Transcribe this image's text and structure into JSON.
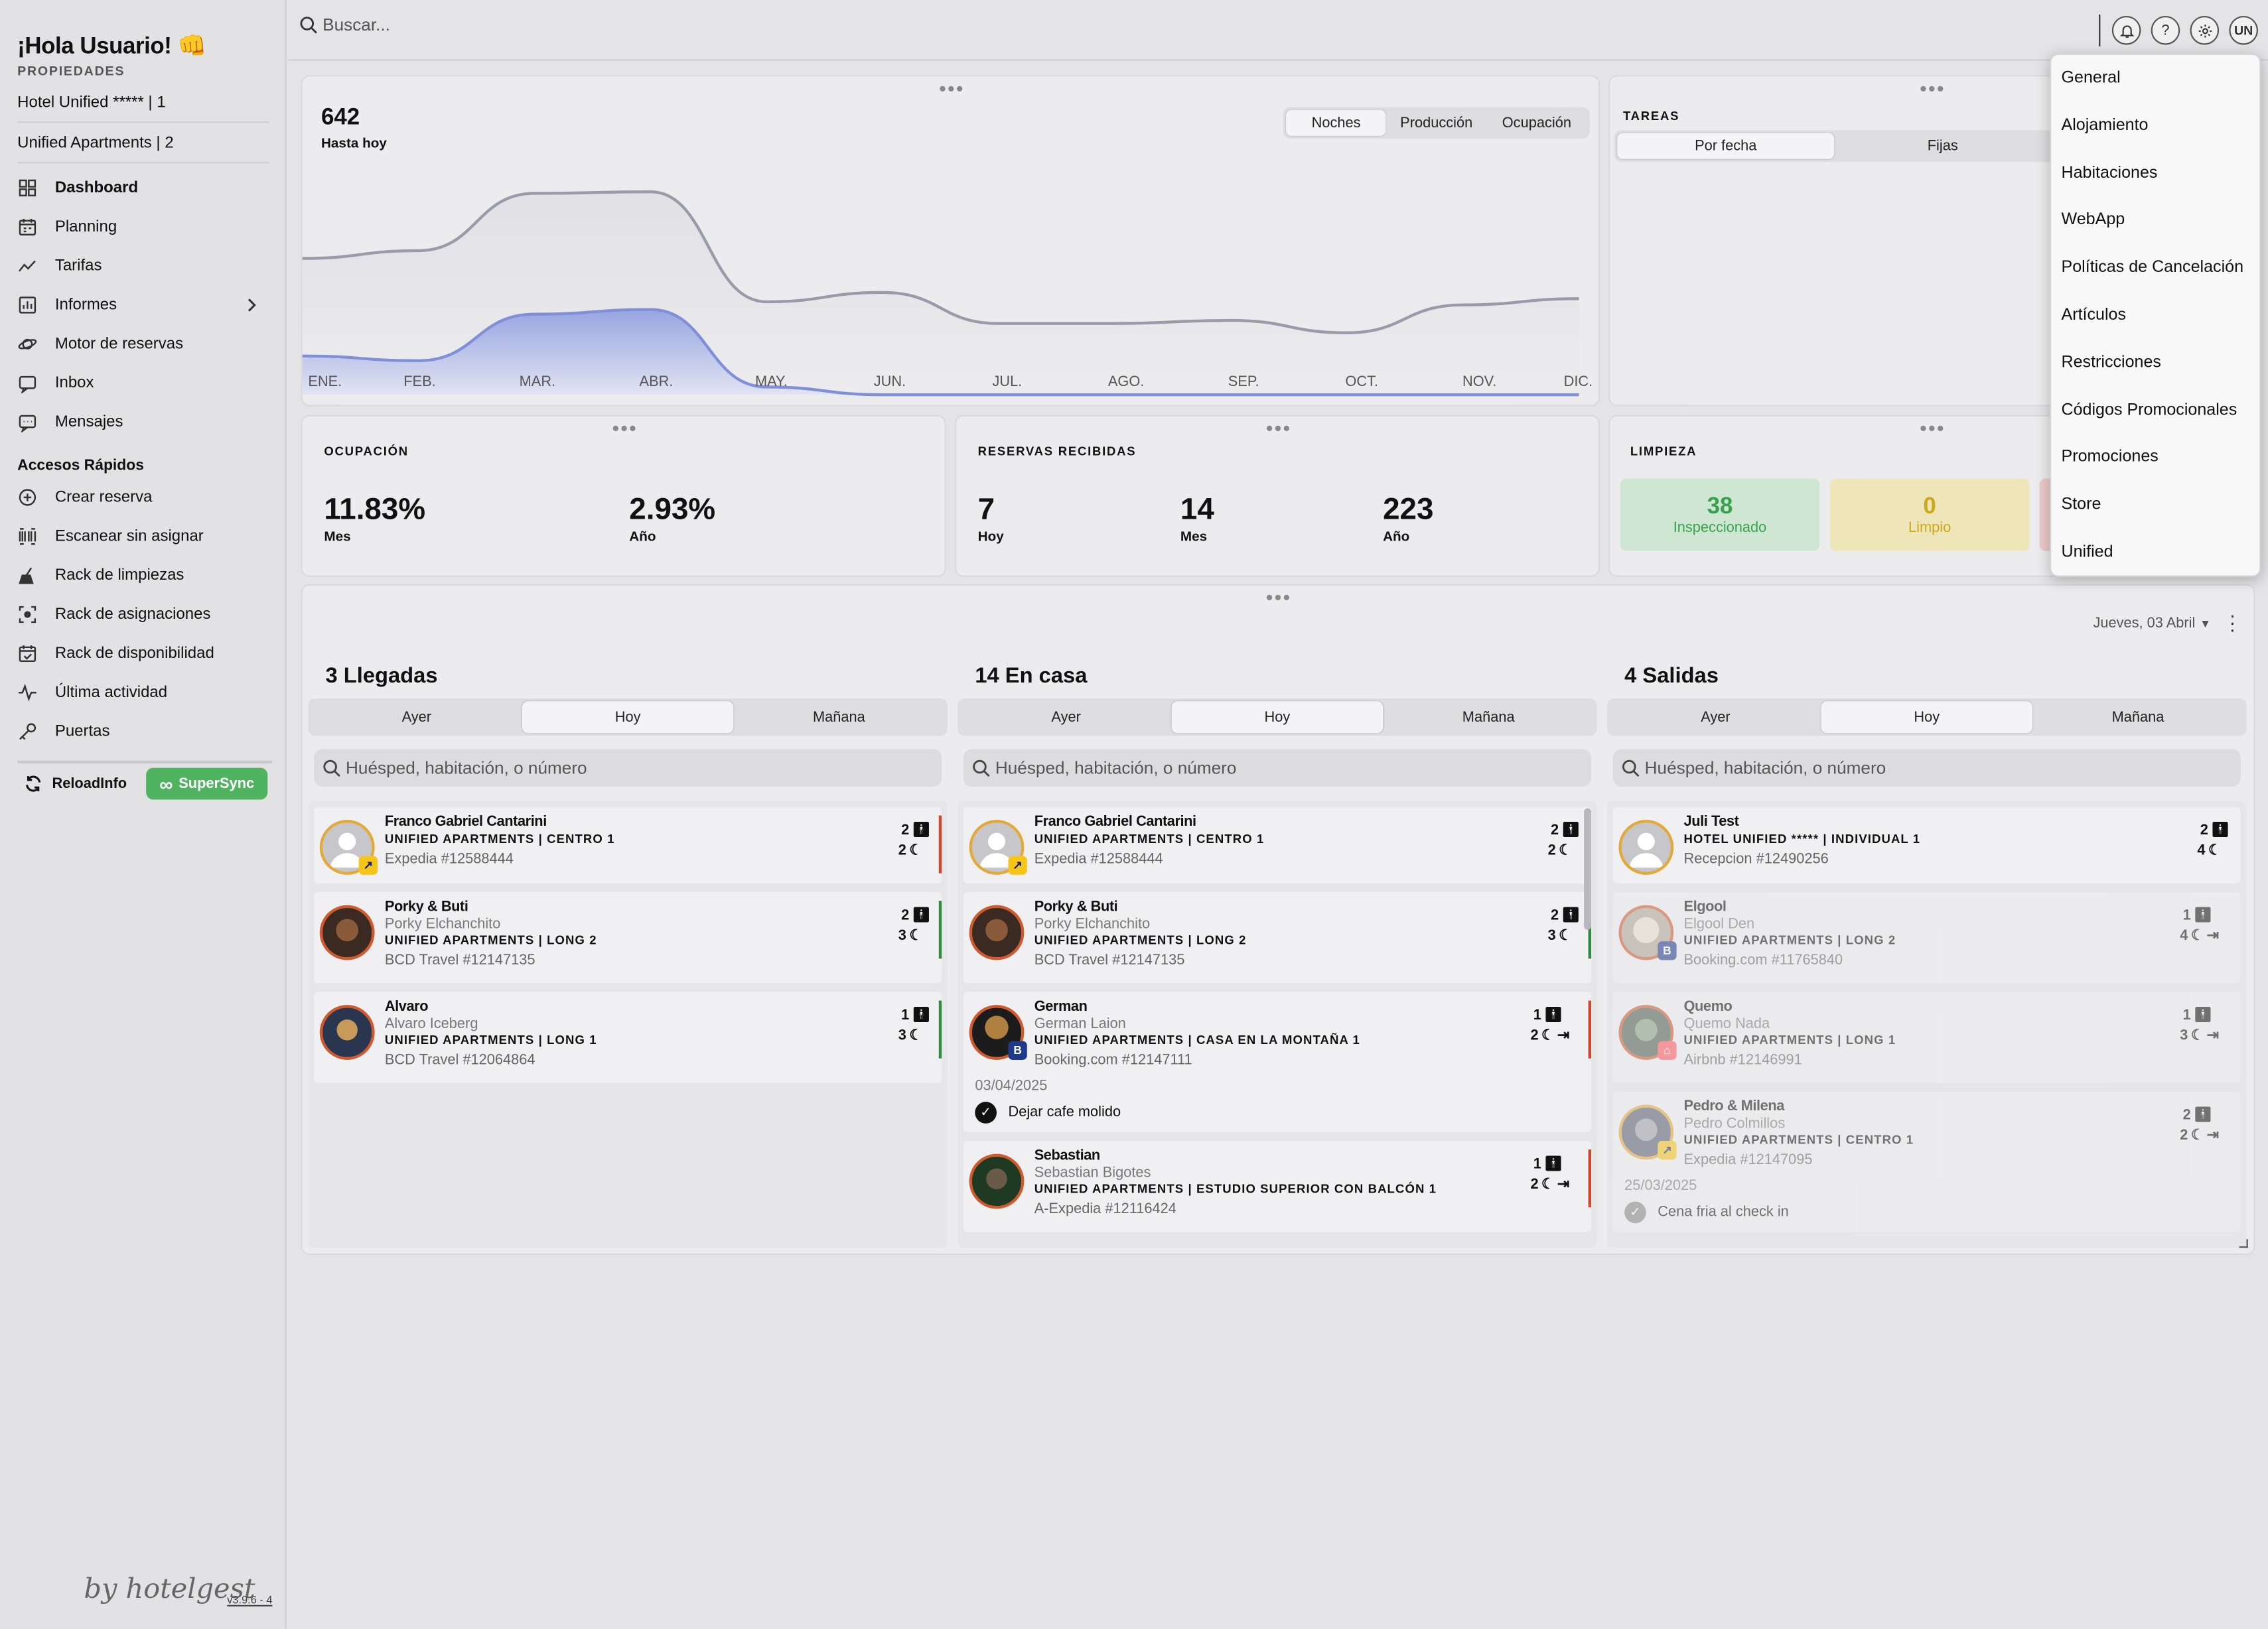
{
  "sidebar": {
    "greeting": "¡Hola Usuario! 👊",
    "properties_heading": "PROPIEDADES",
    "properties": [
      "Hotel Unified ***** | 1",
      "Unified Apartments | 2"
    ],
    "nav": [
      {
        "label": "Dashboard",
        "icon": "dashboard-icon"
      },
      {
        "label": "Planning",
        "icon": "calendar-icon"
      },
      {
        "label": "Tarifas",
        "icon": "trend-icon"
      },
      {
        "label": "Informes",
        "icon": "report-icon"
      },
      {
        "label": "Motor de reservas",
        "icon": "planet-icon"
      },
      {
        "label": "Inbox",
        "icon": "inbox-icon"
      },
      {
        "label": "Mensajes",
        "icon": "message-icon"
      }
    ],
    "quick_heading": "Accesos Rápidos",
    "quick": [
      {
        "label": "Crear reserva",
        "icon": "plus-circle-icon"
      },
      {
        "label": "Escanear sin asignar",
        "icon": "barcode-icon"
      },
      {
        "label": "Rack de limpiezas",
        "icon": "broom-icon"
      },
      {
        "label": "Rack de asignaciones",
        "icon": "target-icon"
      },
      {
        "label": "Rack de disponibilidad",
        "icon": "calendar-check-icon"
      },
      {
        "label": "Última actividad",
        "icon": "activity-icon"
      },
      {
        "label": "Puertas",
        "icon": "key-icon"
      }
    ],
    "reload_label": "ReloadInfo",
    "supersync_label": "SuperSync",
    "brand": "by hotelgest",
    "version": "v3.9.6 - 4"
  },
  "topbar": {
    "search_placeholder": "Buscar...",
    "avatar_initials": "UN"
  },
  "production": {
    "value": "642",
    "label": "Hasta hoy",
    "tabs": [
      "Noches",
      "Producción",
      "Ocupación"
    ],
    "active_tab": "Noches"
  },
  "chart_data": {
    "type": "area",
    "categories": [
      "ENE.",
      "FEB.",
      "MAR.",
      "ABR.",
      "MAY.",
      "JUN.",
      "JUL.",
      "AGO.",
      "SEP.",
      "OCT.",
      "NOV.",
      "DIC."
    ],
    "series": [
      {
        "values": [
          88,
          93,
          130,
          131,
          60,
          66,
          46,
          46,
          48,
          40,
          58,
          62
        ],
        "color": "#9a9aa8"
      },
      {
        "values": [
          25,
          22,
          52,
          55,
          5,
          0,
          0,
          0,
          0,
          0,
          0,
          0
        ],
        "color": "#7f8fd8"
      }
    ],
    "ylim": [
      0,
      140
    ]
  },
  "tasks": {
    "heading": "TAREAS",
    "tabs": [
      "Por fecha",
      "Fijas"
    ]
  },
  "occupancy": {
    "heading": "OCUPACIÓN",
    "stats": [
      {
        "value": "11.83%",
        "label": "Mes"
      },
      {
        "value": "2.93%",
        "label": "Año"
      }
    ]
  },
  "reservations": {
    "heading": "RESERVAS RECIBIDAS",
    "stats": [
      {
        "value": "7",
        "label": "Hoy"
      },
      {
        "value": "14",
        "label": "Mes"
      },
      {
        "value": "223",
        "label": "Año"
      }
    ]
  },
  "cleaning": {
    "heading": "LIMPIEZA",
    "tiles": [
      {
        "value": "38",
        "label": "Inspeccionado"
      },
      {
        "value": "0",
        "label": "Limpio"
      }
    ]
  },
  "movements": {
    "date": "Jueves, 03 Abril",
    "day_tabs": [
      "Ayer",
      "Hoy",
      "Mañana"
    ],
    "search_placeholder": "Huésped, habitación, o número",
    "columns": [
      {
        "title": "3 Llegadas",
        "items": [
          {
            "name": "Franco Gabriel Cantarini",
            "alias": "",
            "unit": "UNIFIED APARTMENTS | CENTRO 1",
            "source": "Expedia #12588444",
            "guests": "2",
            "nights": "2",
            "bar": "#d2462e",
            "avatar": "placeholder",
            "badge": "expedia"
          },
          {
            "name": "Porky & Buti",
            "alias": "Porky Elchanchito",
            "unit": "UNIFIED APARTMENTS | LONG 2",
            "source": "BCD Travel #12147135",
            "guests": "2",
            "nights": "3",
            "bar": "#2e8a3e",
            "avatar": "dog",
            "badge": ""
          },
          {
            "name": "Alvaro",
            "alias": "Alvaro Iceberg",
            "unit": "UNIFIED APARTMENTS | LONG 1",
            "source": "BCD Travel #12064864",
            "guests": "1",
            "nights": "3",
            "bar": "#2e8a3e",
            "avatar": "astro",
            "badge": ""
          }
        ]
      },
      {
        "title": "14 En casa",
        "items": [
          {
            "name": "Franco Gabriel Cantarini",
            "alias": "",
            "unit": "UNIFIED APARTMENTS | CENTRO 1",
            "source": "Expedia #12588444",
            "guests": "2",
            "nights": "2",
            "bar": "#d2462e",
            "avatar": "placeholder",
            "badge": "expedia"
          },
          {
            "name": "Porky & Buti",
            "alias": "Porky Elchanchito",
            "unit": "UNIFIED APARTMENTS | LONG 2",
            "source": "BCD Travel #12147135",
            "guests": "2",
            "nights": "3",
            "bar": "#2e8a3e",
            "avatar": "dog",
            "badge": ""
          },
          {
            "name": "German",
            "alias": "German Laion",
            "unit": "UNIFIED APARTMENTS | CASA EN LA MONTAÑA 1",
            "source": "Booking.com #12147111",
            "guests": "1",
            "nights": "2",
            "bar": "#d2462e",
            "avatar": "lion",
            "badge": "booking",
            "note_date": "03/04/2025",
            "note": "Dejar cafe molido"
          },
          {
            "name": "Sebastian",
            "alias": "Sebastian Bigotes",
            "unit": "UNIFIED APARTMENTS | ESTUDIO SUPERIOR CON BALCÓN 1",
            "source": "A-Expedia #12116424",
            "guests": "1",
            "nights": "2",
            "bar": "#d2462e",
            "avatar": "cat",
            "badge": ""
          }
        ]
      },
      {
        "title": "4 Salidas",
        "items": [
          {
            "name": "Juli Test",
            "alias": "",
            "unit": "HOTEL UNIFIED ***** | INDIVIDUAL 1",
            "source": "Recepcion #12490256",
            "guests": "2",
            "nights": "4",
            "bar": "",
            "avatar": "placeholder",
            "badge": ""
          },
          {
            "name": "Elgool",
            "alias": "Elgool Den",
            "unit": "UNIFIED APARTMENTS | LONG 2",
            "source": "Booking.com #11765840",
            "guests": "1",
            "nights": "4",
            "bar": "",
            "avatar": "bear",
            "badge": "booking"
          },
          {
            "name": "Quemo",
            "alias": "Quemo Nada",
            "unit": "UNIFIED APARTMENTS | LONG 1",
            "source": "Airbnb #12146991",
            "guests": "1",
            "nights": "3",
            "bar": "",
            "avatar": "green",
            "badge": "airbnb"
          },
          {
            "name": "Pedro & Milena",
            "alias": "Pedro Colmillos",
            "unit": "UNIFIED APARTMENTS | CENTRO 1",
            "source": "Expedia #12147095",
            "guests": "2",
            "nights": "2",
            "bar": "",
            "avatar": "wolf",
            "badge": "expedia",
            "note_date": "25/03/2025",
            "note": "Cena fria al check in"
          }
        ]
      }
    ]
  },
  "settings_menu": [
    "General",
    "Alojamiento",
    "Habitaciones",
    "WebApp",
    "Políticas de Cancelación",
    "Artículos",
    "Restricciones",
    "Códigos Promocionales",
    "Promociones",
    "Store",
    "Unified"
  ]
}
